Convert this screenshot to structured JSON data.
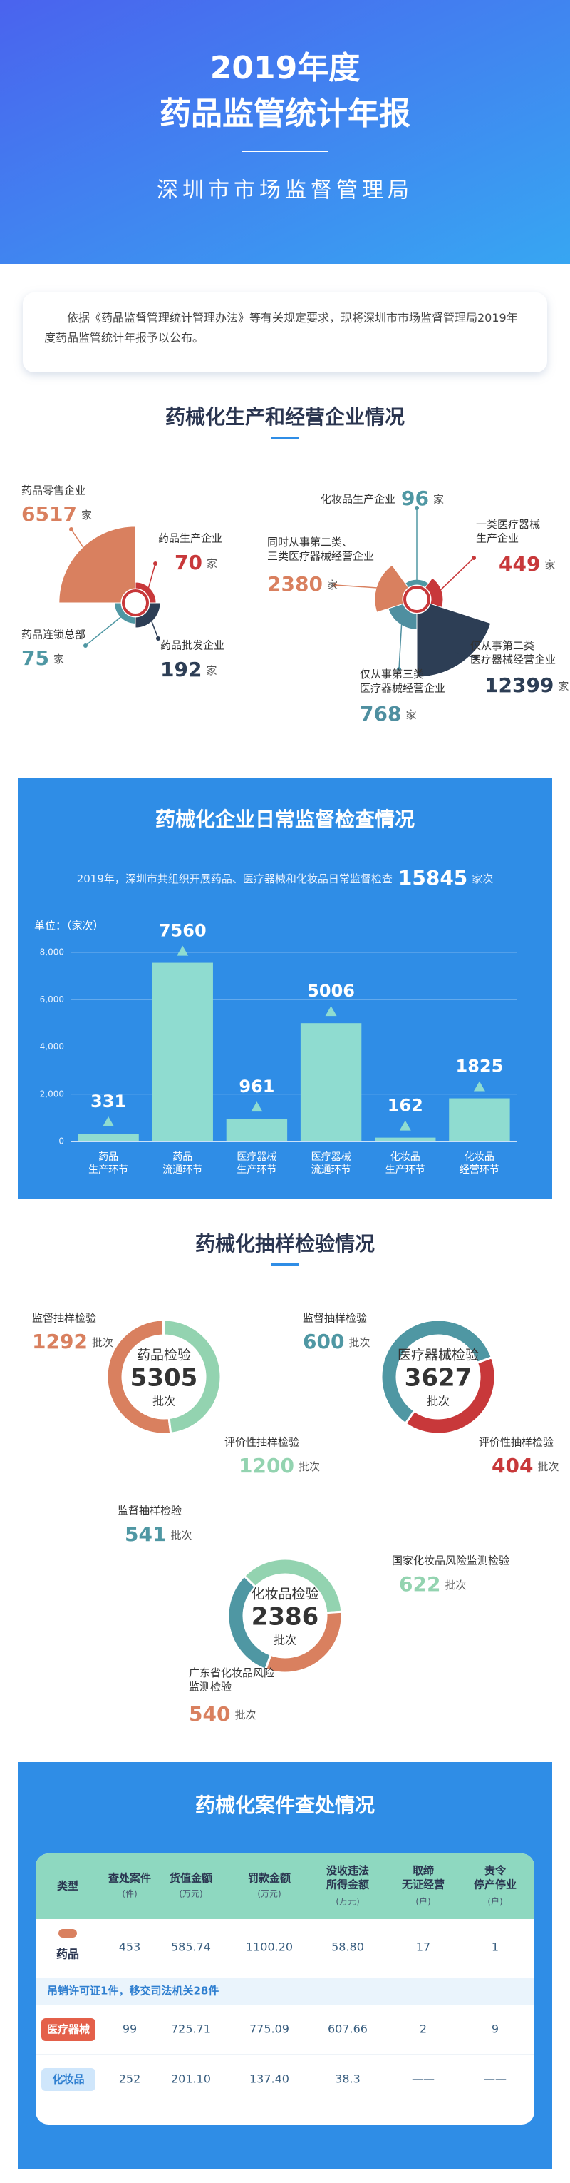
{
  "header": {
    "year_title": "2019年度",
    "title": "药品监管统计年报",
    "org": "深圳市市场监督管理局"
  },
  "intro": "依据《药品监督管理统计管理办法》等有关规定要求，现将深圳市市场监督管理局2019年度药品监管统计年报予以公布。",
  "sections": [
    "药械化生产和经营企业情况",
    "药械化企业日常监督检查情况",
    "药械化抽样检验情况",
    "药械化案件查处情况"
  ],
  "chart_data": [
    {
      "type": "rose",
      "unit": "家",
      "categories": [
        "药品零售企业",
        "药品生产企业",
        "药品批发企业",
        "药品连锁总部"
      ],
      "values": [
        6517,
        70,
        192,
        75
      ],
      "colors": [
        "#d9805f",
        "#c8383a",
        "#2d3e55",
        "#4f97a3"
      ]
    },
    {
      "type": "rose",
      "unit": "家",
      "categories": [
        "化妆品生产企业",
        "一类医疗器械\n生产企业",
        "仅从事第二类\n医疗器械经营企业",
        "仅从事第三类\n医疗器械经营企业",
        "同时从事第二类、\n三类医疗器械经营企业"
      ],
      "values": [
        96,
        449,
        12399,
        768,
        2380
      ],
      "colors": [
        "#4f97a3",
        "#c8383a",
        "#2d3e55",
        "#4f8fa0",
        "#d9805f"
      ]
    },
    {
      "type": "bar",
      "summary": {
        "text": "2019年，深圳市共组织开展药品、医疗器械和化妆品日常监督检查",
        "total": 15845,
        "unit": "家次"
      },
      "y_label": "单位：（家次）",
      "categories": [
        "药品\n生产环节",
        "药品\n流通环节",
        "医疗器械\n生产环节",
        "医疗器械\n流通环节",
        "化妆品\n生产环节",
        "化妆品\n经营环节"
      ],
      "values": [
        331,
        7560,
        961,
        5006,
        162,
        1825
      ],
      "color": "#8fdcd0",
      "ylim": [
        0,
        8000
      ],
      "yticks": [
        0,
        {
          "value": 2000,
          "label": "2,000"
        },
        {
          "value": 4000,
          "label": "4,000"
        },
        {
          "value": 6000,
          "label": "6,000"
        },
        {
          "value": 8000,
          "label": "8,000"
        }
      ],
      "grid": true
    },
    {
      "type": "donut",
      "title": "药品检验",
      "total": 5305,
      "unit": "批次",
      "categories": [
        "监督抽样检验",
        "评价性抽样检验"
      ],
      "values": [
        1292,
        1200
      ],
      "colors": [
        "#d9805f",
        "#93d3b0"
      ]
    },
    {
      "type": "donut",
      "title": "医疗器械检验",
      "total": 3627,
      "unit": "批次",
      "categories": [
        "监督抽样检验",
        "评价性抽样检验"
      ],
      "values": [
        600,
        404
      ],
      "colors": [
        "#4f97a3",
        "#c8383a"
      ]
    },
    {
      "type": "donut",
      "title": "化妆品检验",
      "total": 2386,
      "unit": "批次",
      "categories": [
        "监督抽样检验",
        "国家化妆品风险监测检验",
        "广东省化妆品风险\n监测检验"
      ],
      "values": [
        541,
        622,
        540
      ],
      "colors": [
        "#4f97a3",
        "#93d3b0",
        "#d9805f"
      ]
    }
  ],
  "cases_table": {
    "columns": [
      {
        "name": "类型"
      },
      {
        "name": "查处案件",
        "unit": "(件)"
      },
      {
        "name": "货值金额",
        "unit": "(万元)"
      },
      {
        "name": "罚款金额",
        "unit": "(万元)"
      },
      {
        "name": "没收违法\n所得金额",
        "unit": "(万元)"
      },
      {
        "name": "取缔\n无证经营",
        "unit": "(户)"
      },
      {
        "name": "责令\n停产停业",
        "unit": "(户)"
      }
    ],
    "rows": [
      {
        "type": "药品",
        "cells": [
          "453",
          "585.74",
          "1100.20",
          "58.80",
          "17",
          "1"
        ],
        "note": "吊销许可证1件，移交司法机关28件"
      },
      {
        "type": "医疗器械",
        "cells": [
          "99",
          "725.71",
          "775.09",
          "607.66",
          "2",
          "9"
        ]
      },
      {
        "type": "化妆品",
        "cells": [
          "252",
          "201.10",
          "137.40",
          "38.3",
          "——",
          "——"
        ]
      }
    ]
  }
}
